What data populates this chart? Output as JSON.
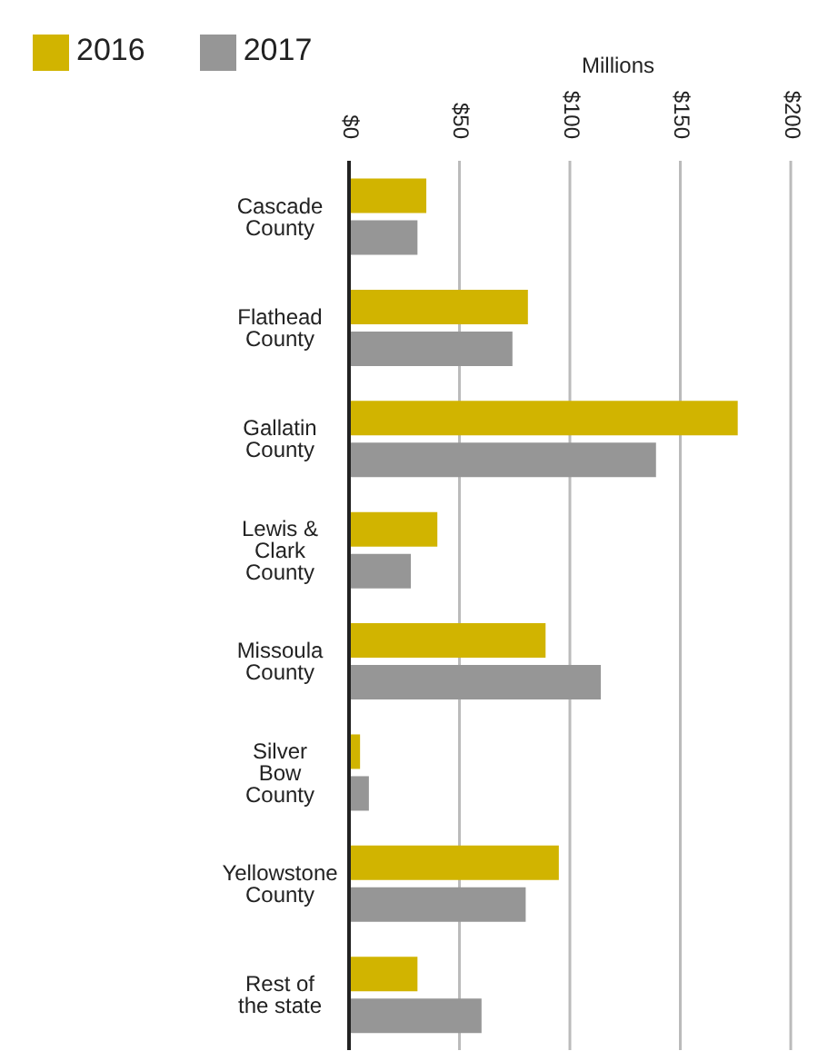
{
  "chart_data": {
    "type": "bar",
    "orientation": "horizontal",
    "xlabel": "Millions",
    "categories": [
      "Cascade County",
      "Flathead County",
      "Gallatin County",
      "Lewis & Clark County",
      "Missoula County",
      "Silver Bow County",
      "Yellowstone County",
      "Rest of the state"
    ],
    "series": [
      {
        "name": "2016",
        "color": "#d1b400",
        "values": [
          35,
          81,
          176,
          40,
          89,
          5,
          95,
          31
        ]
      },
      {
        "name": "2017",
        "color": "#969696",
        "values": [
          31,
          74,
          139,
          28,
          114,
          9,
          80,
          60
        ]
      }
    ],
    "xlim": [
      0,
      200
    ],
    "xticks": [
      {
        "value": 0,
        "label": "$0"
      },
      {
        "value": 50,
        "label": "$50"
      },
      {
        "value": 100,
        "label": "$100"
      },
      {
        "value": 150,
        "label": "$150"
      },
      {
        "value": 200,
        "label": "$200"
      }
    ],
    "grid": "x",
    "legend": "top left"
  }
}
